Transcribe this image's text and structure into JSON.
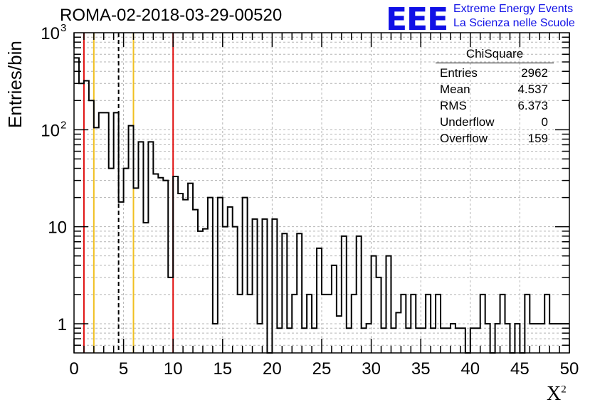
{
  "header": {
    "title": "ROMA-02-2018-03-29-00520",
    "logo_text": "EEE",
    "logo_line1": "Extreme Energy Events",
    "logo_line2": "La Scienza nelle Scuole"
  },
  "stats": {
    "title": "ChiSquare",
    "rows": [
      {
        "label": "Entries",
        "value": "2962"
      },
      {
        "label": "Mean",
        "value": "4.537"
      },
      {
        "label": "RMS",
        "value": "6.373"
      },
      {
        "label": "Underflow",
        "value": "0"
      },
      {
        "label": "Overflow",
        "value": "159"
      }
    ]
  },
  "chart_data": {
    "type": "bar",
    "title": "ROMA-02-2018-03-29-00520",
    "xlabel": "X",
    "xlabel_superscript": "2",
    "ylabel": "Entries/bin",
    "xlim": [
      0,
      50
    ],
    "ylim": [
      0.5,
      1000
    ],
    "y_scale": "log",
    "bin_width": 0.5,
    "grid": true,
    "legend": "top-right",
    "x_ticks": [
      "0",
      "5",
      "10",
      "15",
      "20",
      "25",
      "30",
      "35",
      "40",
      "45",
      "50"
    ],
    "y_ticks": [
      {
        "value": 1,
        "label": "1"
      },
      {
        "value": 10,
        "label": "10"
      },
      {
        "value": 100,
        "label": "10",
        "exp": "2"
      },
      {
        "value": 1000,
        "label": "10",
        "exp": "3"
      }
    ],
    "values": [
      550,
      300,
      320,
      200,
      105,
      150,
      150,
      40,
      150,
      18,
      40,
      110,
      25,
      75,
      11,
      75,
      35,
      32,
      30,
      3,
      33,
      22,
      19,
      28,
      15,
      9,
      9.5,
      20,
      1,
      20,
      10,
      16,
      10,
      2,
      20,
      2,
      12,
      1,
      12,
      0,
      12,
      0.9,
      8.5,
      0.9,
      2,
      8.5,
      0.9,
      2,
      0.9,
      6,
      2,
      2,
      4,
      1.2,
      8,
      0.9,
      2,
      8,
      0.9,
      1,
      5,
      3,
      0.9,
      5,
      0.9,
      1.3,
      2,
      0.9,
      2,
      0.9,
      0.9,
      2,
      0.9,
      2,
      0.9,
      0.9,
      1,
      0.9,
      0.9,
      0,
      0.9,
      0.9,
      2,
      1,
      0,
      1,
      2,
      1,
      0,
      1,
      0,
      2,
      1,
      1,
      1,
      2,
      1,
      1,
      1,
      1
    ],
    "vertical_lines": [
      {
        "x": 1.0,
        "color": "#e01010",
        "style": "solid"
      },
      {
        "x": 2.0,
        "color": "#f0c020",
        "style": "solid"
      },
      {
        "x": 4.5,
        "color": "#000000",
        "style": "dashed"
      },
      {
        "x": 6.0,
        "color": "#f0c020",
        "style": "solid"
      },
      {
        "x": 10.0,
        "color": "#e01010",
        "style": "solid"
      }
    ],
    "line_color": "#000000"
  }
}
